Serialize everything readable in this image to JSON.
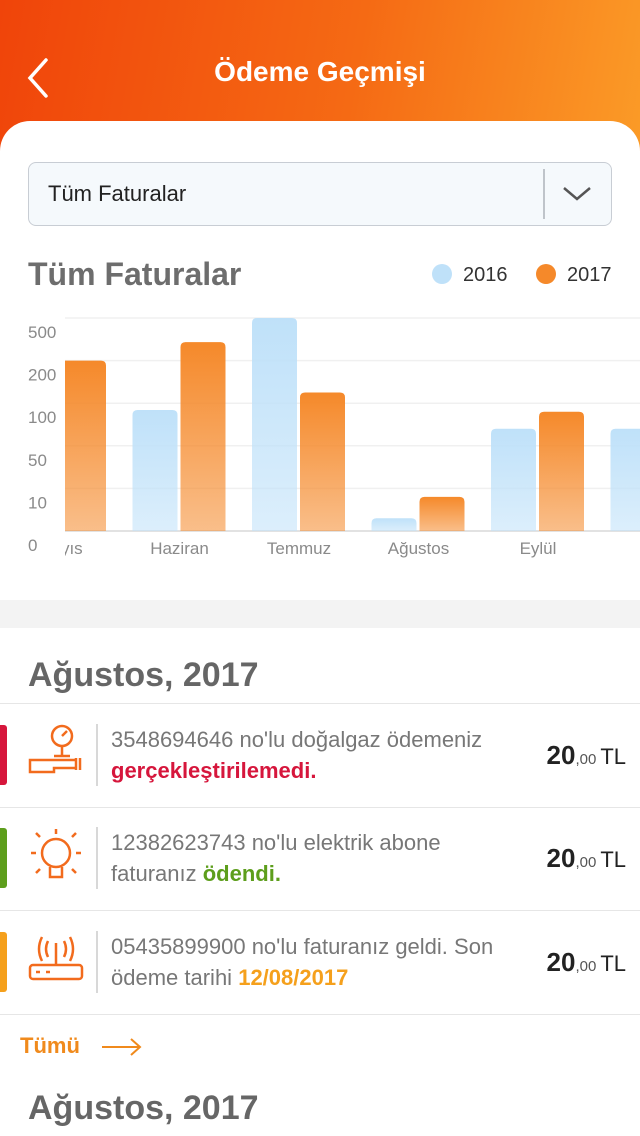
{
  "header": {
    "title": "Ödeme Geçmişi"
  },
  "filter": {
    "selected": "Tüm Faturalar"
  },
  "chart_data": {
    "type": "bar",
    "title": "Tüm Faturalar",
    "categories": [
      "Mayıs",
      "Haziran",
      "Temmuz",
      "Ağustos",
      "Eylül",
      null
    ],
    "series": [
      {
        "name": "2016",
        "color": "#bfe1f9",
        "values": [
          null,
          92,
          500,
          3,
          70,
          70
        ]
      },
      {
        "name": "2017",
        "color": "#f5892a",
        "values": [
          200,
          330,
          125,
          8,
          90,
          null
        ]
      }
    ],
    "ylim": [
      0,
      500
    ],
    "yticks": [
      0,
      10,
      50,
      100,
      200,
      500
    ],
    "grid": true,
    "legend_position": "top-right"
  },
  "sections": [
    {
      "title": "Ağustos, 2017",
      "items": [
        {
          "text": "3548694646 no'lu doğalgaz ödemeniz",
          "status": "gerçekleştirilemedi.",
          "amount": "20",
          "decimals": ",00",
          "currency": "TL"
        },
        {
          "text": "12382623743 no'lu elektrik abone faturanız",
          "status": "ödendi.",
          "amount": "20",
          "decimals": ",00",
          "currency": "TL"
        },
        {
          "text": "05435899900 no'lu faturanız geldi. Son ödeme tarihi",
          "status": "12/08/2017",
          "amount": "20",
          "decimals": ",00",
          "currency": "TL"
        }
      ]
    },
    {
      "title": "Ağustos, 2017"
    }
  ],
  "more_link": "Tümü"
}
